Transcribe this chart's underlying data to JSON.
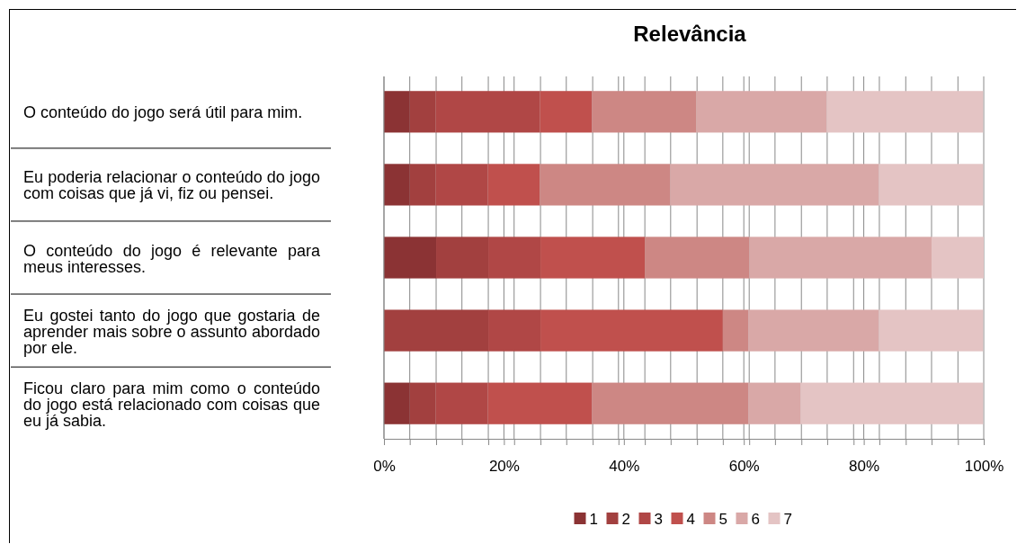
{
  "chart_data": {
    "type": "bar",
    "title": "Relevância",
    "orientation": "horizontal",
    "stacked": true,
    "categories": [
      "O conteúdo do jogo será útil para mim.",
      "Eu poderia relacionar o conteúdo do jogo com coisas que já vi, fiz ou pensei.",
      "O conteúdo do jogo é relevante para meus interesses.",
      "Eu gostei tanto do jogo que gostaria de aprender mais sobre o assunto abordado por ele.",
      "Ficou claro para mim como o conteúdo do jogo está relacionado com coisas que eu já sabia."
    ],
    "series": [
      {
        "name": "1",
        "color": "#8b3334",
        "values": [
          4.3,
          4.3,
          8.7,
          0,
          4.3
        ]
      },
      {
        "name": "2",
        "color": "#a2403f",
        "values": [
          4.3,
          4.3,
          8.7,
          17.4,
          4.3
        ]
      },
      {
        "name": "3",
        "color": "#b04746",
        "values": [
          17.4,
          8.7,
          8.7,
          8.7,
          8.7
        ]
      },
      {
        "name": "4",
        "color": "#c0504d",
        "values": [
          8.7,
          8.7,
          17.4,
          30.4,
          17.4
        ]
      },
      {
        "name": "5",
        "color": "#cd8784",
        "values": [
          17.4,
          21.7,
          17.4,
          4.3,
          26.1
        ]
      },
      {
        "name": "6",
        "color": "#d9a8a7",
        "values": [
          21.7,
          34.8,
          30.4,
          21.7,
          8.7
        ]
      },
      {
        "name": "7",
        "color": "#e4c4c4",
        "values": [
          26.1,
          17.4,
          8.7,
          17.4,
          30.4
        ]
      }
    ],
    "xlim": [
      0,
      100
    ],
    "xticks": [
      {
        "value": 0,
        "label": "0%"
      },
      {
        "value": 4.3,
        "label": null
      },
      {
        "value": 8.7,
        "label": null
      },
      {
        "value": 13,
        "label": null
      },
      {
        "value": 17.4,
        "label": null
      },
      {
        "value": 20,
        "label": "20%"
      },
      {
        "value": 21.7,
        "label": null
      },
      {
        "value": 26.1,
        "label": null
      },
      {
        "value": 30.4,
        "label": null
      },
      {
        "value": 34.8,
        "label": null
      },
      {
        "value": 39.1,
        "label": null
      },
      {
        "value": 40,
        "label": "40%"
      },
      {
        "value": 43.5,
        "label": null
      },
      {
        "value": 47.8,
        "label": null
      },
      {
        "value": 52.2,
        "label": null
      },
      {
        "value": 56.5,
        "label": null
      },
      {
        "value": 60,
        "label": "60%"
      },
      {
        "value": 60.9,
        "label": null
      },
      {
        "value": 65.2,
        "label": null
      },
      {
        "value": 69.6,
        "label": null
      },
      {
        "value": 73.9,
        "label": null
      },
      {
        "value": 78.3,
        "label": null
      },
      {
        "value": 80,
        "label": "80%"
      },
      {
        "value": 82.6,
        "label": null
      },
      {
        "value": 87,
        "label": null
      },
      {
        "value": 91.3,
        "label": null
      },
      {
        "value": 95.7,
        "label": null
      },
      {
        "value": 100,
        "label": "100%"
      }
    ],
    "grid": "x",
    "legend": "bottom"
  }
}
